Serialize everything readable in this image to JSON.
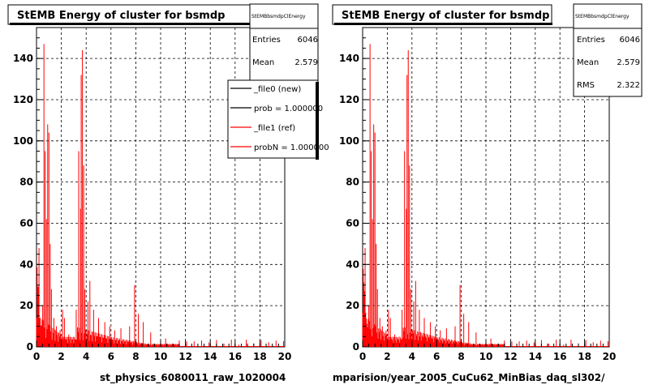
{
  "colors": {
    "ref": "#ff0000",
    "new": "#000000",
    "frame": "#000000",
    "grid": "#000000"
  },
  "chart_data": [
    {
      "type": "bar",
      "title": "StEMB Energy of cluster for bsmdp",
      "xlabel": "st_physics_6080011_raw_1020004",
      "xlim": [
        0,
        20
      ],
      "ylim": [
        0,
        155
      ],
      "xticks": [
        0,
        2,
        4,
        6,
        8,
        10,
        12,
        14,
        16,
        18,
        20
      ],
      "yticks": [
        0,
        20,
        40,
        60,
        80,
        100,
        120,
        140
      ],
      "grid": true,
      "stats": {
        "header": "StEMBbsmdpClEnergy",
        "entries_label": "Entries",
        "entries": "6046",
        "mean_label": "Mean",
        "mean": "2.579"
      },
      "legend": {
        "placement": "top-right",
        "entries": [
          {
            "label": "_file0 (new)",
            "color": "#000000"
          },
          {
            "label": "prob = 1.000000",
            "color": "#000000"
          },
          {
            "label": "_file1 (ref)",
            "color": "#ff0000"
          },
          {
            "label": "probN = 1.000000",
            "color": "#ff0000"
          }
        ]
      },
      "series": [
        {
          "peaks": [
            [
              0.2,
              48
            ],
            [
              0.5,
              20
            ],
            [
              0.62,
              147
            ],
            [
              0.7,
              95
            ],
            [
              0.8,
              62
            ],
            [
              0.9,
              108
            ],
            [
              1.0,
              104
            ],
            [
              1.1,
              50
            ],
            [
              1.2,
              28
            ],
            [
              1.4,
              14
            ],
            [
              1.6,
              10
            ],
            [
              1.9,
              8
            ],
            [
              2.1,
              18
            ],
            [
              2.25,
              14
            ],
            [
              2.6,
              6
            ],
            [
              3.2,
              18
            ],
            [
              3.4,
              95
            ],
            [
              3.55,
              67
            ],
            [
              3.6,
              132
            ],
            [
              3.7,
              144
            ],
            [
              3.8,
              88
            ],
            [
              3.9,
              28
            ],
            [
              4.15,
              22
            ],
            [
              4.3,
              32
            ],
            [
              4.6,
              18
            ],
            [
              5.0,
              14
            ],
            [
              5.5,
              12
            ],
            [
              5.9,
              10
            ],
            [
              6.3,
              8
            ],
            [
              6.8,
              9
            ],
            [
              7.5,
              10
            ],
            [
              7.9,
              30
            ],
            [
              8.2,
              16
            ],
            [
              8.6,
              12
            ],
            [
              9.2,
              7
            ],
            [
              10.4,
              4
            ],
            [
              12.2,
              4
            ],
            [
              14.0,
              3
            ],
            [
              16.1,
              2
            ],
            [
              18.0,
              2
            ]
          ]
        }
      ]
    },
    {
      "type": "bar",
      "title": "StEMB Energy of cluster for bsmdp",
      "xlabel": "mparision/year_2005_CuCu62_MinBias_daq_sl302/",
      "xlim": [
        0,
        20
      ],
      "ylim": [
        0,
        155
      ],
      "xticks": [
        0,
        2,
        4,
        6,
        8,
        10,
        12,
        14,
        16,
        18,
        20
      ],
      "yticks": [
        0,
        20,
        40,
        60,
        80,
        100,
        120,
        140
      ],
      "grid": true,
      "stats": {
        "header": "StEMBbsmdpClEnergy",
        "entries_label": "Entries",
        "entries": "6046",
        "mean_label": "Mean",
        "mean": "2.579",
        "rms_label": "RMS",
        "rms": "2.322"
      },
      "series": [
        {
          "peaks": [
            [
              0.2,
              48
            ],
            [
              0.5,
              20
            ],
            [
              0.62,
              147
            ],
            [
              0.7,
              95
            ],
            [
              0.8,
              62
            ],
            [
              0.9,
              108
            ],
            [
              1.0,
              104
            ],
            [
              1.1,
              50
            ],
            [
              1.2,
              28
            ],
            [
              1.4,
              14
            ],
            [
              1.6,
              10
            ],
            [
              1.9,
              8
            ],
            [
              2.1,
              18
            ],
            [
              2.25,
              14
            ],
            [
              2.6,
              6
            ],
            [
              3.2,
              18
            ],
            [
              3.4,
              95
            ],
            [
              3.55,
              67
            ],
            [
              3.6,
              132
            ],
            [
              3.7,
              144
            ],
            [
              3.8,
              88
            ],
            [
              3.9,
              28
            ],
            [
              4.15,
              22
            ],
            [
              4.3,
              32
            ],
            [
              4.6,
              18
            ],
            [
              5.0,
              14
            ],
            [
              5.5,
              12
            ],
            [
              5.9,
              10
            ],
            [
              6.3,
              8
            ],
            [
              6.8,
              9
            ],
            [
              7.5,
              10
            ],
            [
              7.9,
              30
            ],
            [
              8.2,
              16
            ],
            [
              8.6,
              12
            ],
            [
              9.2,
              7
            ],
            [
              10.4,
              4
            ],
            [
              12.2,
              4
            ],
            [
              14.0,
              3
            ],
            [
              16.1,
              2
            ],
            [
              18.0,
              2
            ]
          ]
        }
      ]
    }
  ]
}
